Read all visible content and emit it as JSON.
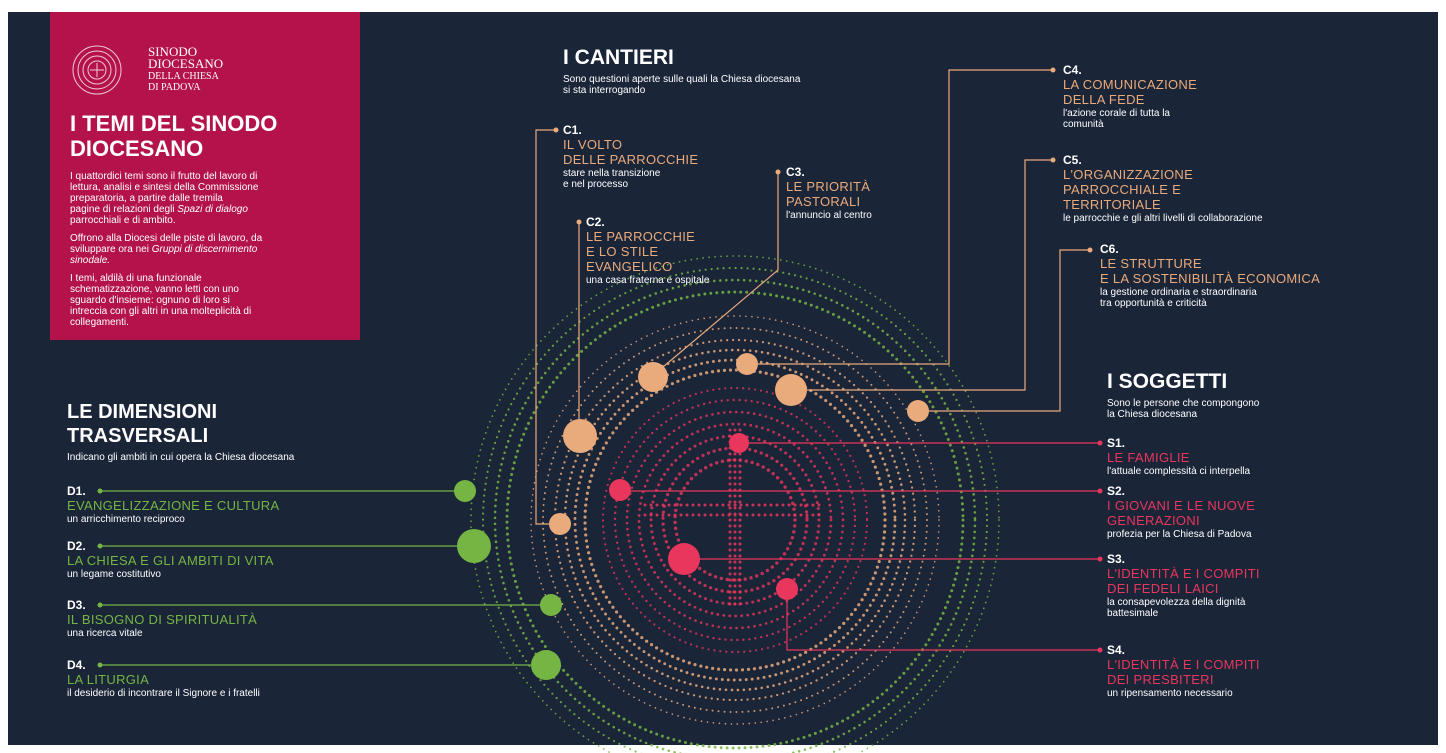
{
  "logo": {
    "lines": [
      "SINODO",
      "DIOCESANO",
      "DELLA CHIESA",
      "DI PADOVA"
    ]
  },
  "header": {
    "title": [
      "I TEMI DEL SINODO",
      "DIOCESANO"
    ],
    "paragraphs": [
      [
        [
          "I quattordici temi sono il frutto del lavoro di"
        ],
        [
          "lettura, analisi e sintesi della Commissione"
        ],
        [
          "preparatoria, a partire dalle tremila"
        ],
        [
          "pagine di relazioni degli ",
          {
            "text": "Spazi di dialogo",
            "italic": true
          }
        ],
        [
          "parrocchiali e di ambito."
        ]
      ],
      [
        [
          "Offrono alla Diocesi delle piste di lavoro, da"
        ],
        [
          "sviluppare ora nei ",
          {
            "text": "Gruppi di discernimento",
            "italic": true
          }
        ],
        [
          {
            "text": "sinodale.",
            "italic": true
          }
        ]
      ],
      [
        [
          "I temi, aldilà di una funzionale"
        ],
        [
          "schematizzazione, vanno letti con uno"
        ],
        [
          "sguardo d'insieme: ognuno di loro si"
        ],
        [
          "intreccia con gli altri in una molteplicità di"
        ],
        [
          "collegamenti."
        ]
      ]
    ]
  },
  "cantieri": {
    "title": "I CANTIERI",
    "subtitle": [
      "Sono questioni aperte sulle quali la Chiesa diocesana",
      "si sta interrogando"
    ],
    "color": "#e9aa7c",
    "items": [
      {
        "code": "C1.",
        "title": [
          "IL VOLTO",
          "DELLE PARROCCHIE"
        ],
        "subtitle": [
          "stare nella transizione",
          "e nel processo"
        ]
      },
      {
        "code": "C2.",
        "title": [
          "LE PARROCCHIE",
          "E LO STILE",
          "EVANGELICO"
        ],
        "subtitle": [
          "una casa fraterna e ospitale"
        ]
      },
      {
        "code": "C3.",
        "title": [
          "LE PRIORITÀ",
          "PASTORALI"
        ],
        "subtitle": [
          "l'annuncio al centro"
        ]
      },
      {
        "code": "C4.",
        "title": [
          "LA COMUNICAZIONE",
          "DELLA FEDE"
        ],
        "subtitle": [
          "l'azione corale di tutta la",
          "comunità"
        ]
      },
      {
        "code": "C5.",
        "title": [
          "L'ORGANIZZAZIONE",
          "PARROCCHIALE E",
          "TERRITORIALE"
        ],
        "subtitle": [
          "le parrocchie e gli altri livelli di collaborazione"
        ]
      },
      {
        "code": "C6.",
        "title": [
          "LE STRUTTURE",
          "E LA SOSTENIBILITÀ ECONOMICA"
        ],
        "subtitle": [
          "la gestione ordinaria e straordinaria",
          "tra opportunità e criticità"
        ]
      }
    ]
  },
  "soggetti": {
    "title": "I SOGGETTI",
    "subtitle": [
      "Sono le persone che compongono",
      "la Chiesa diocesana"
    ],
    "color": "#e8365c",
    "items": [
      {
        "code": "S1.",
        "title": [
          "LE FAMIGLIE"
        ],
        "subtitle": [
          "l'attuale complessità ci interpella"
        ]
      },
      {
        "code": "S2.",
        "title": [
          "I GIOVANI E LE NUOVE",
          "GENERAZIONI"
        ],
        "subtitle": [
          "profezia per la Chiesa di Padova"
        ]
      },
      {
        "code": "S3.",
        "title": [
          "L'IDENTITÀ E I COMPITI",
          "DEI FEDELI LAICI"
        ],
        "subtitle": [
          "la consapevolezza della dignità",
          "battesimale"
        ]
      },
      {
        "code": "S4.",
        "title": [
          "L'IDENTITÀ E I COMPITI",
          "DEI PRESBITERI"
        ],
        "subtitle": [
          "un ripensamento necessario"
        ]
      }
    ]
  },
  "dimensioni": {
    "title": [
      "LE DIMENSIONI",
      "TRASVERSALI"
    ],
    "subtitle": [
      "Indicano gli ambiti in cui opera la Chiesa diocesana"
    ],
    "color": "#74b543",
    "items": [
      {
        "code": "D1.",
        "title": [
          "EVANGELIZZAZIONE E CULTURA"
        ],
        "subtitle": [
          "un arricchimento reciproco"
        ]
      },
      {
        "code": "D2.",
        "title": [
          "LA CHIESA E GLI AMBITI DI VITA"
        ],
        "subtitle": [
          "un legame costitutivo"
        ]
      },
      {
        "code": "D3.",
        "title": [
          "IL BISOGNO DI SPIRITUALITÀ"
        ],
        "subtitle": [
          "una ricerca vitale"
        ]
      },
      {
        "code": "D4.",
        "title": [
          "LA LITURGIA"
        ],
        "subtitle": [
          "il desiderio di incontrare il Signore e i fratelli"
        ]
      }
    ]
  }
}
